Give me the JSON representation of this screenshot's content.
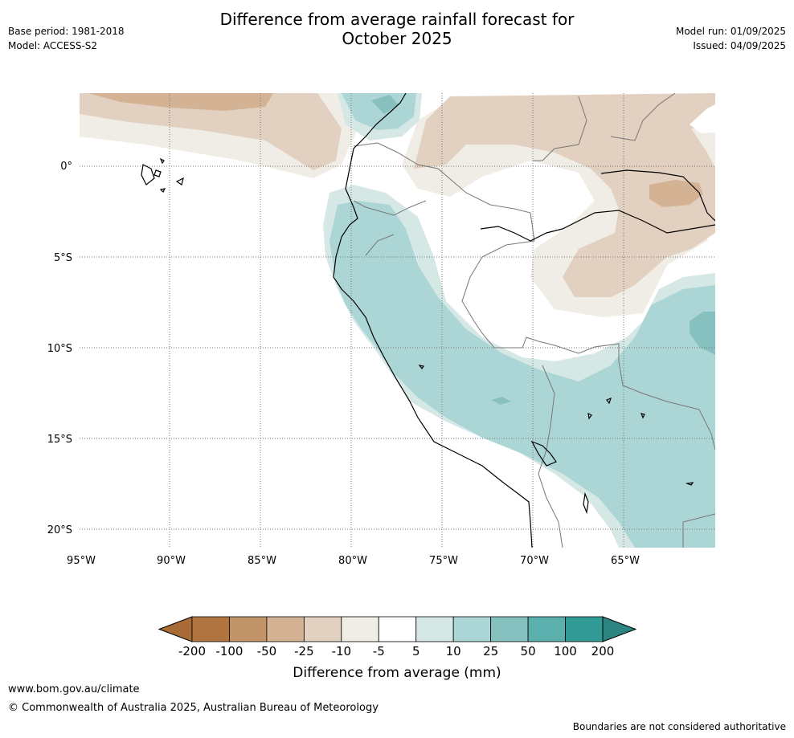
{
  "header": {
    "base_period": "Base period: 1981-2018",
    "model": "Model: ACCESS-S2",
    "title_line1": "Difference from average rainfall forecast for",
    "title_line2": "October 2025",
    "model_run": "Model run: 01/09/2025",
    "issued": "Issued: 04/09/2025"
  },
  "map": {
    "lat_labels": [
      "0°",
      "5°S",
      "10°S",
      "15°S",
      "20°S"
    ],
    "lon_labels": [
      "95°W",
      "90°W",
      "85°W",
      "80°W",
      "75°W",
      "70°W",
      "65°W"
    ]
  },
  "legend": {
    "title": "Difference from average (mm)",
    "ticks": [
      "-200",
      "-100",
      "-50",
      "-25",
      "-10",
      "-5",
      "5",
      "10",
      "25",
      "50",
      "100",
      "200"
    ],
    "colors": [
      "#a96b36",
      "#b07440",
      "#c2946a",
      "#d3b394",
      "#e2d0c0",
      "#f0ece6",
      "#ffffff",
      "#d6e8e6",
      "#acd6d5",
      "#86c1bf",
      "#5bb0ad",
      "#339b96",
      "#2c8580"
    ]
  },
  "footer": {
    "url": "www.bom.gov.au/climate",
    "copyright": "© Commonwealth of Australia 2025, Australian Bureau of Meteorology",
    "note": "Boundaries are not considered authoritative"
  }
}
